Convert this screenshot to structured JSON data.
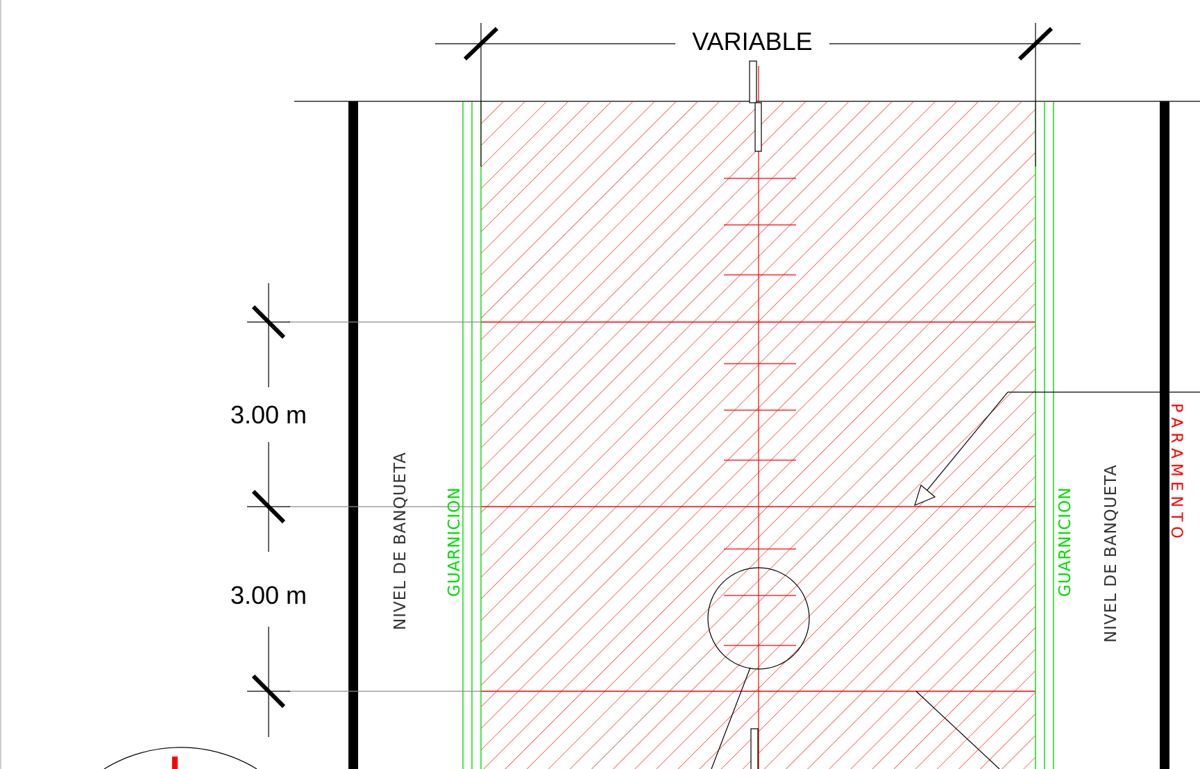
{
  "labels": {
    "width_dimension": "VARIABLE",
    "spacing_1": "3.00 m",
    "spacing_2": "3.00 m",
    "sidewalk_left": "NIVEL  DE  BANQUETA",
    "curb_left": "GUARNICION",
    "curb_right": "GUARNICION",
    "sidewalk_right": "NIVEL  DE  BANQUETA",
    "wall": "P A R A M E N T O"
  },
  "colors": {
    "background": "#ffffff",
    "line": "#000000",
    "hatch": "#ff0000",
    "curb": "#00dd00",
    "thin_gray": "#8c8c8c"
  }
}
